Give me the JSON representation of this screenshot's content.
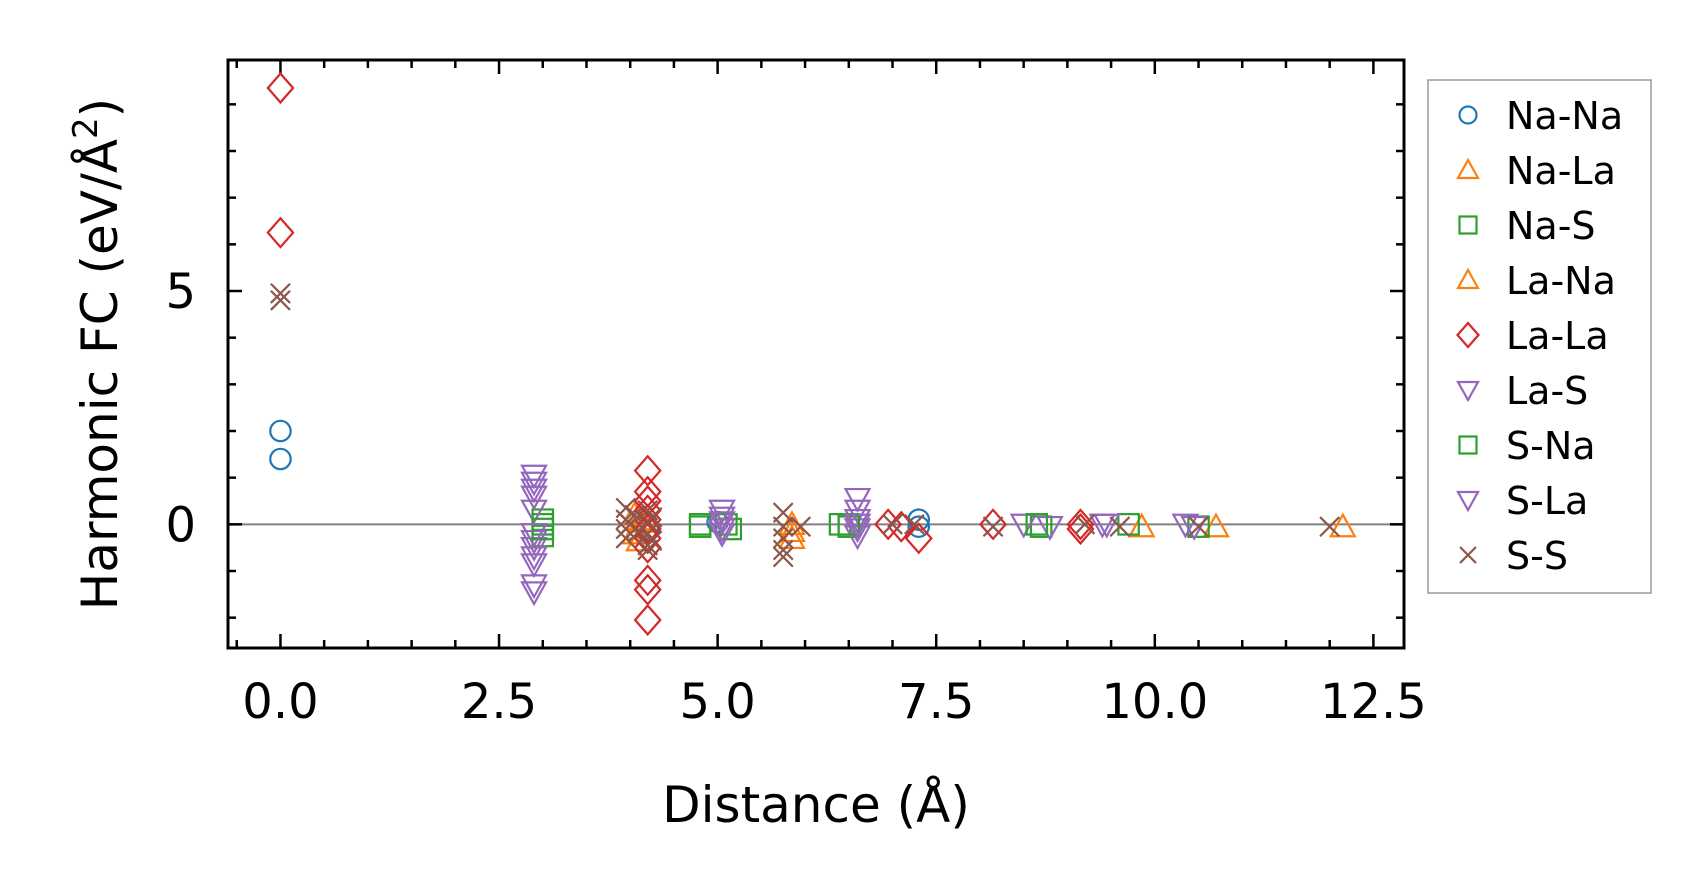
{
  "chart_data": {
    "type": "scatter",
    "title": "",
    "xlabel": "Distance (Å)",
    "ylabel_main": "Harmonic FC (eV/Å",
    "ylabel_sup": "2",
    "ylabel_close": ")",
    "xlim": [
      -0.6,
      12.85
    ],
    "ylim": [
      -2.65,
      9.95
    ],
    "xticks": [
      0,
      2.5,
      5,
      7.5,
      10,
      12.5
    ],
    "xtick_labels": [
      "0.0",
      "2.5",
      "5.0",
      "7.5",
      "10.0",
      "12.5"
    ],
    "xticks_minor_step": 0.5,
    "yticks": [
      0,
      5
    ],
    "ytick_labels": [
      "0",
      "5"
    ],
    "yticks_minor_step": 1,
    "zero_line": true,
    "legend_position": "outside-right",
    "series": [
      {
        "name": "Na-Na",
        "marker": "circle",
        "color": "#1f77b4",
        "points": [
          [
            0,
            2.0
          ],
          [
            0,
            1.4
          ],
          [
            7.3,
            0.1
          ],
          [
            7.3,
            -0.05
          ],
          [
            4.2,
            -0.1
          ],
          [
            5.0,
            0.05
          ]
        ]
      },
      {
        "name": "Na-La",
        "marker": "triangle-up",
        "color": "#ff7f0e",
        "points": [
          [
            4.05,
            0.2
          ],
          [
            4.05,
            -0.2
          ],
          [
            4.1,
            -0.35
          ],
          [
            4.15,
            0.05
          ],
          [
            5.85,
            -0.15
          ],
          [
            5.85,
            -0.3
          ],
          [
            9.85,
            -0.05
          ],
          [
            10.7,
            -0.05
          ],
          [
            12.15,
            -0.05
          ]
        ]
      },
      {
        "name": "Na-S",
        "marker": "square",
        "color": "#2ca02c",
        "points": [
          [
            3.0,
            0.0
          ],
          [
            3.0,
            -0.25
          ],
          [
            3.0,
            0.1
          ],
          [
            4.8,
            0.0
          ],
          [
            4.8,
            -0.05
          ],
          [
            5.1,
            0.0
          ],
          [
            5.15,
            -0.1
          ],
          [
            6.4,
            0.0
          ],
          [
            6.5,
            -0.05
          ],
          [
            8.7,
            -0.05
          ],
          [
            9.7,
            0.0
          ],
          [
            10.5,
            -0.05
          ]
        ]
      },
      {
        "name": "La-Na",
        "marker": "triangle-up",
        "color": "#ff7f0e",
        "points": [
          [
            4.1,
            0.1
          ],
          [
            4.1,
            -0.1
          ],
          [
            5.85,
            0.0
          ]
        ]
      },
      {
        "name": "La-La",
        "marker": "diamond",
        "color": "#d62728",
        "points": [
          [
            0,
            9.35
          ],
          [
            0,
            6.25
          ],
          [
            4.2,
            1.15
          ],
          [
            4.2,
            0.7
          ],
          [
            4.2,
            0.5
          ],
          [
            4.2,
            0.3
          ],
          [
            4.2,
            0.1
          ],
          [
            4.2,
            -0.1
          ],
          [
            4.2,
            -0.3
          ],
          [
            4.2,
            -0.5
          ],
          [
            4.2,
            -1.2
          ],
          [
            4.2,
            -1.4
          ],
          [
            4.2,
            -2.05
          ],
          [
            6.95,
            0.0
          ],
          [
            7.1,
            -0.05
          ],
          [
            7.3,
            -0.3
          ],
          [
            8.15,
            0.0
          ],
          [
            9.15,
            0.0
          ],
          [
            9.15,
            -0.1
          ]
        ]
      },
      {
        "name": "La-S",
        "marker": "triangle-down",
        "color": "#9467bd",
        "points": [
          [
            2.9,
            1.05
          ],
          [
            2.9,
            0.9
          ],
          [
            2.9,
            0.75
          ],
          [
            2.9,
            0.3
          ],
          [
            2.9,
            -0.35
          ],
          [
            2.9,
            -0.5
          ],
          [
            2.9,
            -0.7
          ],
          [
            2.9,
            -0.85
          ],
          [
            2.9,
            -1.3
          ],
          [
            2.9,
            -1.45
          ],
          [
            5.05,
            0.3
          ],
          [
            5.05,
            0.15
          ],
          [
            5.05,
            -0.1
          ],
          [
            5.05,
            -0.2
          ],
          [
            6.6,
            0.55
          ],
          [
            6.6,
            0.3
          ],
          [
            6.6,
            0.1
          ],
          [
            6.6,
            -0.1
          ],
          [
            6.6,
            -0.25
          ],
          [
            8.5,
            0.0
          ],
          [
            8.8,
            -0.05
          ],
          [
            9.4,
            0.0
          ],
          [
            10.35,
            0.0
          ],
          [
            10.45,
            -0.05
          ]
        ]
      },
      {
        "name": "S-Na",
        "marker": "square",
        "color": "#2ca02c",
        "points": [
          [
            3.0,
            -0.1
          ],
          [
            6.5,
            0.0
          ],
          [
            8.65,
            0.0
          ]
        ]
      },
      {
        "name": "S-La",
        "marker": "triangle-down",
        "color": "#9467bd",
        "points": [
          [
            2.9,
            0.6
          ],
          [
            2.9,
            -0.2
          ],
          [
            5.05,
            0.05
          ],
          [
            6.6,
            0.0
          ],
          [
            9.45,
            0.0
          ]
        ]
      },
      {
        "name": "S-S",
        "marker": "x",
        "color": "#8c564b",
        "points": [
          [
            0,
            4.95
          ],
          [
            0,
            4.8
          ],
          [
            3.95,
            0.35
          ],
          [
            3.95,
            0.1
          ],
          [
            3.95,
            -0.1
          ],
          [
            3.95,
            -0.3
          ],
          [
            4.0,
            0.0
          ],
          [
            4.05,
            0.2
          ],
          [
            4.1,
            -0.15
          ],
          [
            4.2,
            0.3
          ],
          [
            4.2,
            0.05
          ],
          [
            4.2,
            -0.2
          ],
          [
            4.2,
            -0.45
          ],
          [
            4.2,
            -0.55
          ],
          [
            4.25,
            0.15
          ],
          [
            4.25,
            -0.35
          ],
          [
            5.75,
            0.25
          ],
          [
            5.75,
            -0.05
          ],
          [
            5.75,
            -0.3
          ],
          [
            5.75,
            -0.55
          ],
          [
            5.75,
            -0.7
          ],
          [
            5.95,
            -0.05
          ],
          [
            7.0,
            0.0
          ],
          [
            7.25,
            0.0
          ],
          [
            8.15,
            -0.05
          ],
          [
            9.2,
            0.0
          ],
          [
            9.6,
            -0.05
          ],
          [
            10.5,
            -0.05
          ],
          [
            12.0,
            -0.05
          ]
        ]
      }
    ]
  }
}
